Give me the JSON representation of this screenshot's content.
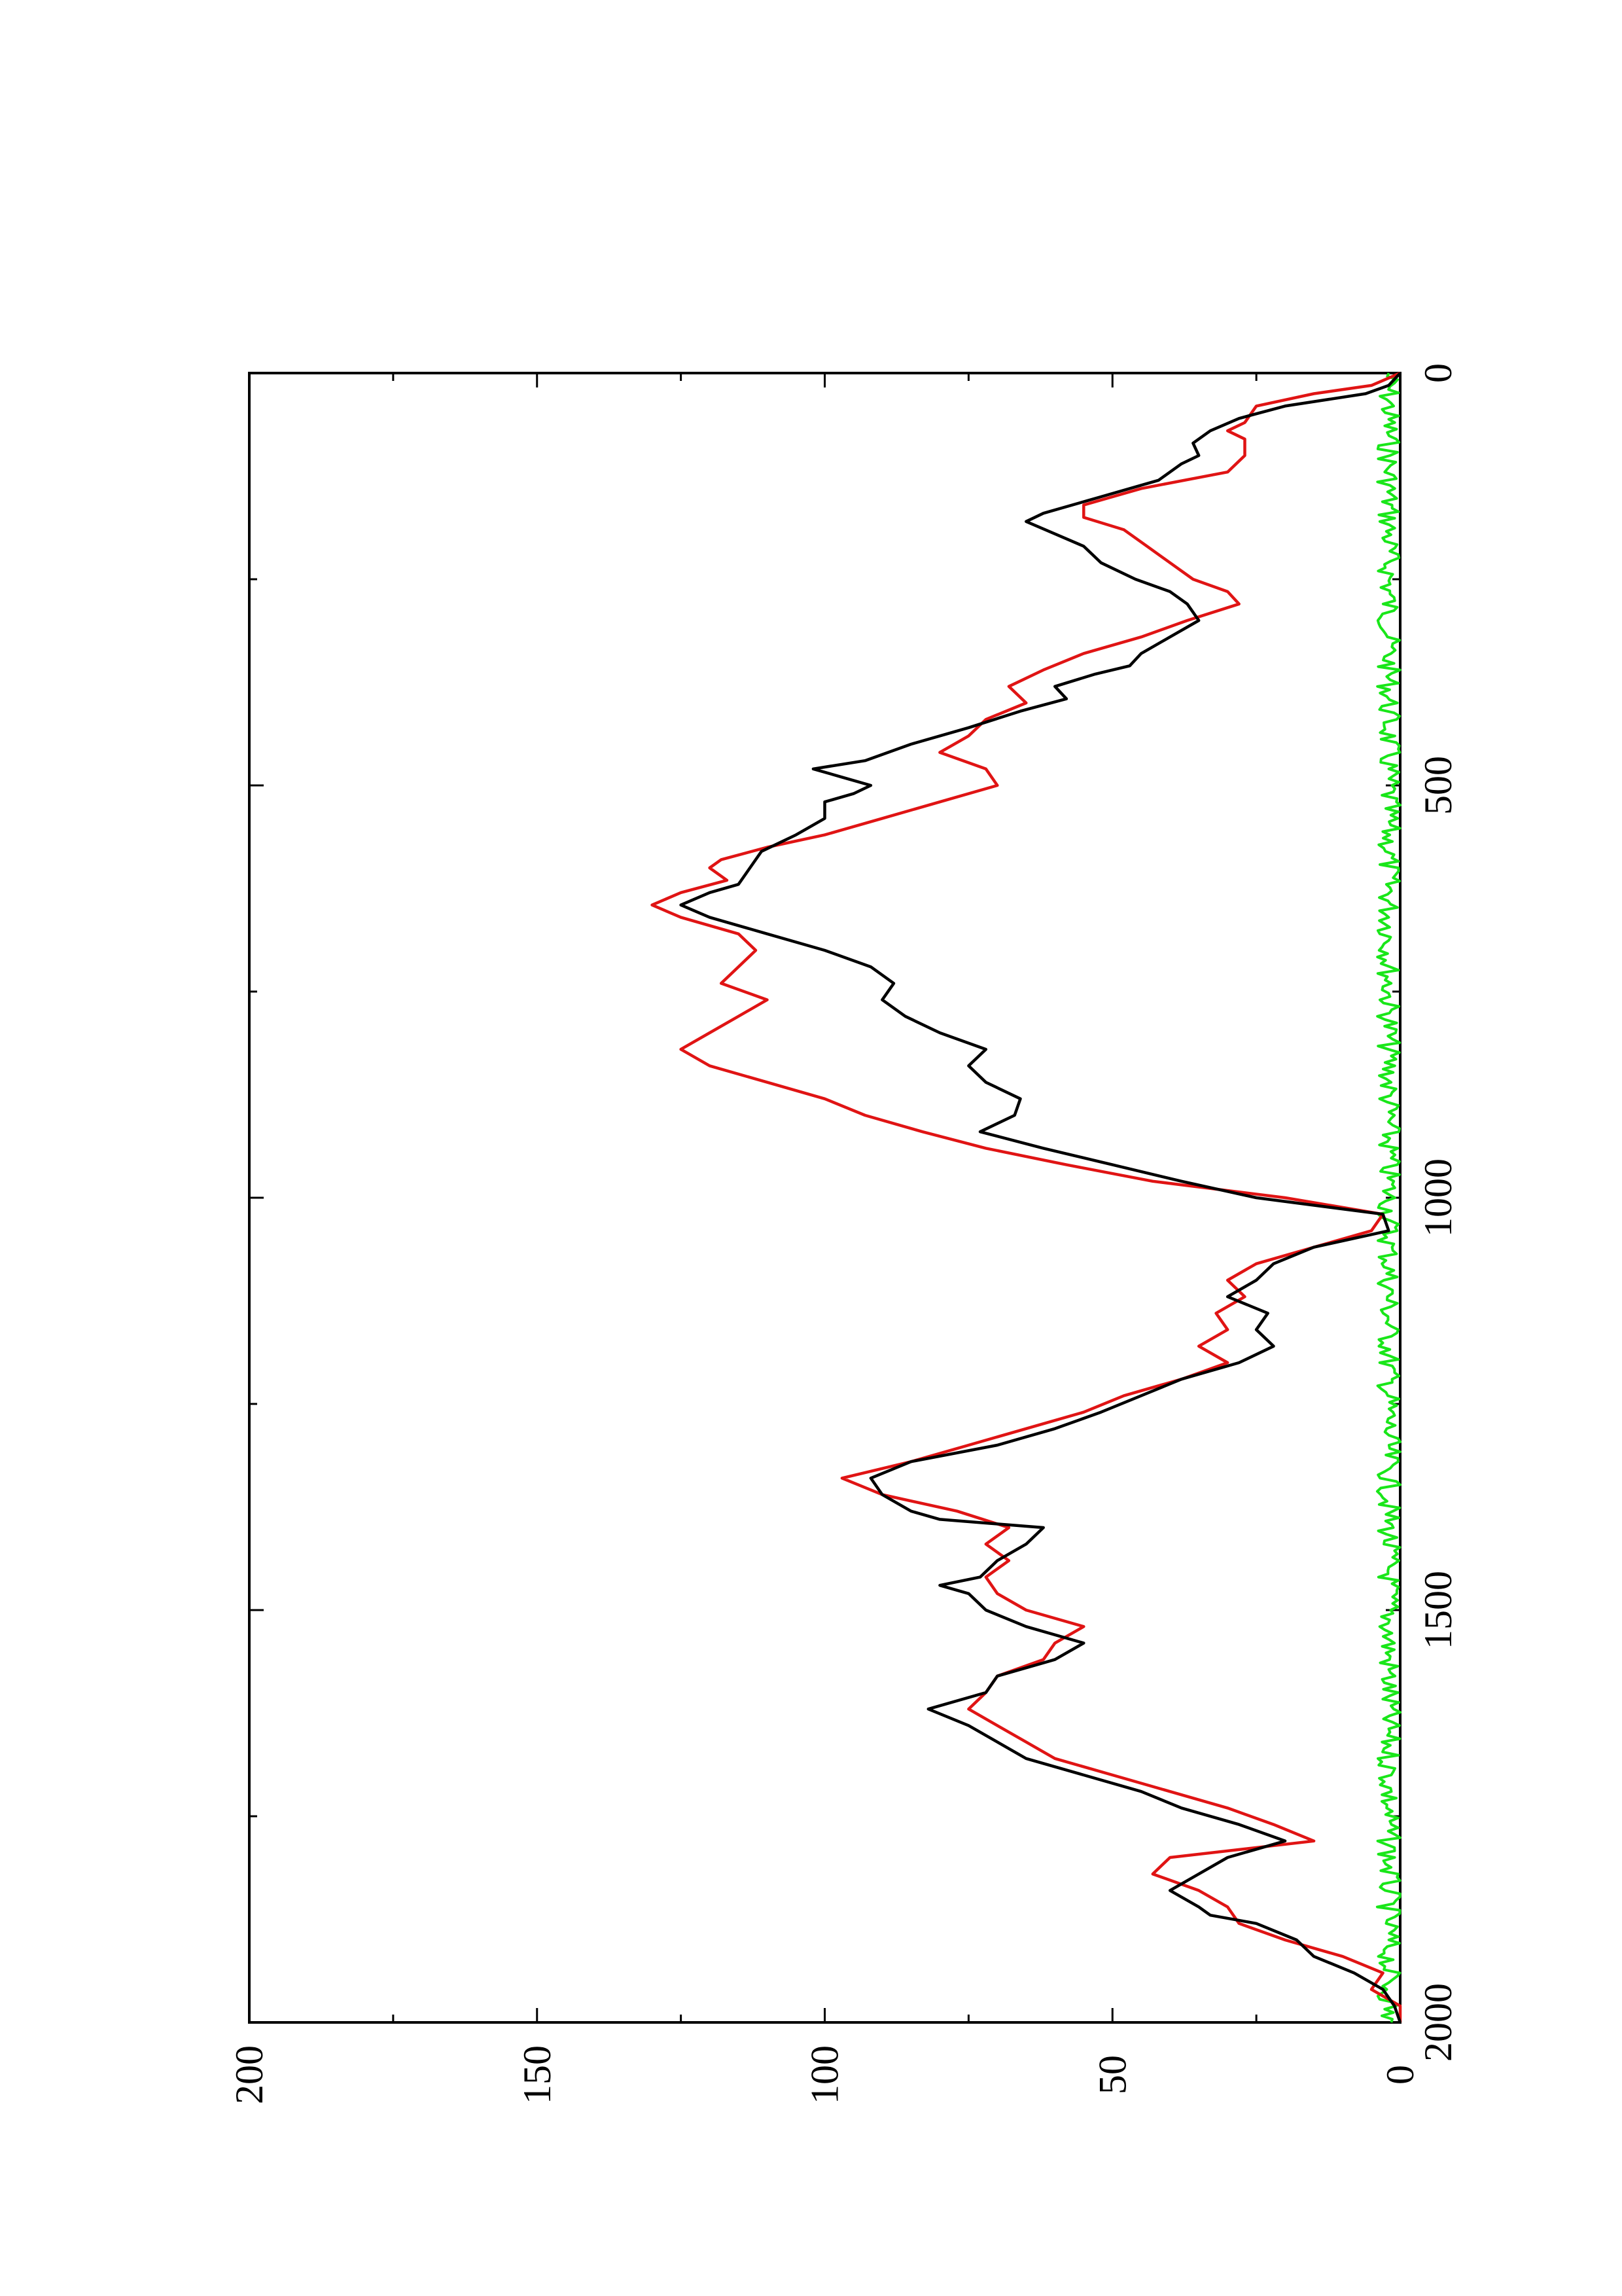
{
  "chart_data": {
    "type": "line",
    "orientation": "rotated-90-ccw",
    "title": "",
    "xlabel": "",
    "ylabel": "",
    "xlim": [
      0,
      2000
    ],
    "ylim": [
      0,
      200
    ],
    "x_ticks": [
      0,
      500,
      1000,
      1500,
      2000
    ],
    "y_ticks": [
      0,
      50,
      100,
      150,
      200
    ],
    "x_tick_labels": [
      "0",
      "500",
      "1000",
      "1500",
      "2000"
    ],
    "y_tick_labels": [
      "0",
      "50",
      "100",
      "150",
      "200"
    ],
    "x_minor_ticks": [
      250,
      750,
      1250,
      1750
    ],
    "y_minor_ticks": [
      25,
      75,
      125,
      175
    ],
    "grid": false,
    "legend": "none",
    "series": [
      {
        "color": "#000000",
        "points": [
          [
            0,
            0
          ],
          [
            15,
            2
          ],
          [
            25,
            6
          ],
          [
            40,
            20
          ],
          [
            55,
            28
          ],
          [
            70,
            33
          ],
          [
            85,
            36
          ],
          [
            100,
            35
          ],
          [
            110,
            38
          ],
          [
            130,
            42
          ],
          [
            150,
            52
          ],
          [
            170,
            62
          ],
          [
            180,
            65
          ],
          [
            195,
            60
          ],
          [
            210,
            55
          ],
          [
            230,
            52
          ],
          [
            250,
            46
          ],
          [
            265,
            40
          ],
          [
            280,
            37
          ],
          [
            300,
            35
          ],
          [
            320,
            40
          ],
          [
            340,
            45
          ],
          [
            355,
            47
          ],
          [
            365,
            53
          ],
          [
            380,
            60
          ],
          [
            395,
            58
          ],
          [
            410,
            66
          ],
          [
            430,
            75
          ],
          [
            450,
            85
          ],
          [
            470,
            93
          ],
          [
            480,
            102
          ],
          [
            490,
            97
          ],
          [
            500,
            92
          ],
          [
            510,
            95
          ],
          [
            520,
            100
          ],
          [
            540,
            100
          ],
          [
            560,
            105
          ],
          [
            580,
            111
          ],
          [
            600,
            113
          ],
          [
            620,
            115
          ],
          [
            630,
            120
          ],
          [
            645,
            125
          ],
          [
            660,
            120
          ],
          [
            680,
            110
          ],
          [
            700,
            100
          ],
          [
            720,
            92
          ],
          [
            740,
            88
          ],
          [
            760,
            90
          ],
          [
            780,
            86
          ],
          [
            800,
            80
          ],
          [
            820,
            72
          ],
          [
            840,
            75
          ],
          [
            860,
            72
          ],
          [
            880,
            66
          ],
          [
            900,
            67
          ],
          [
            920,
            73
          ],
          [
            940,
            62
          ],
          [
            960,
            50
          ],
          [
            980,
            38
          ],
          [
            1000,
            25
          ],
          [
            1020,
            3
          ],
          [
            1040,
            2
          ],
          [
            1060,
            15
          ],
          [
            1080,
            22
          ],
          [
            1100,
            25
          ],
          [
            1120,
            30
          ],
          [
            1140,
            23
          ],
          [
            1160,
            25
          ],
          [
            1180,
            22
          ],
          [
            1200,
            28
          ],
          [
            1220,
            38
          ],
          [
            1240,
            45
          ],
          [
            1260,
            52
          ],
          [
            1280,
            60
          ],
          [
            1300,
            70
          ],
          [
            1320,
            85
          ],
          [
            1340,
            92
          ],
          [
            1360,
            90
          ],
          [
            1380,
            85
          ],
          [
            1390,
            80
          ],
          [
            1400,
            62
          ],
          [
            1420,
            65
          ],
          [
            1440,
            70
          ],
          [
            1460,
            73
          ],
          [
            1470,
            80
          ],
          [
            1480,
            75
          ],
          [
            1500,
            72
          ],
          [
            1520,
            65
          ],
          [
            1540,
            55
          ],
          [
            1560,
            60
          ],
          [
            1580,
            70
          ],
          [
            1600,
            72
          ],
          [
            1620,
            82
          ],
          [
            1640,
            75
          ],
          [
            1660,
            70
          ],
          [
            1680,
            65
          ],
          [
            1700,
            55
          ],
          [
            1720,
            45
          ],
          [
            1740,
            38
          ],
          [
            1760,
            28
          ],
          [
            1780,
            20
          ],
          [
            1800,
            30
          ],
          [
            1820,
            35
          ],
          [
            1840,
            40
          ],
          [
            1860,
            35
          ],
          [
            1870,
            33
          ],
          [
            1880,
            25
          ],
          [
            1900,
            18
          ],
          [
            1920,
            15
          ],
          [
            1940,
            8
          ],
          [
            1960,
            3
          ],
          [
            1980,
            1
          ],
          [
            2000,
            0
          ]
        ]
      },
      {
        "color": "#e01414",
        "points": [
          [
            0,
            0
          ],
          [
            15,
            5
          ],
          [
            25,
            15
          ],
          [
            40,
            25
          ],
          [
            60,
            27
          ],
          [
            70,
            30
          ],
          [
            80,
            27
          ],
          [
            100,
            27
          ],
          [
            120,
            30
          ],
          [
            140,
            45
          ],
          [
            160,
            55
          ],
          [
            175,
            55
          ],
          [
            190,
            48
          ],
          [
            210,
            44
          ],
          [
            230,
            40
          ],
          [
            250,
            36
          ],
          [
            265,
            30
          ],
          [
            280,
            28
          ],
          [
            300,
            37
          ],
          [
            320,
            45
          ],
          [
            340,
            55
          ],
          [
            360,
            62
          ],
          [
            380,
            68
          ],
          [
            400,
            65
          ],
          [
            420,
            72
          ],
          [
            440,
            75
          ],
          [
            460,
            80
          ],
          [
            480,
            72
          ],
          [
            500,
            70
          ],
          [
            520,
            80
          ],
          [
            540,
            90
          ],
          [
            560,
            100
          ],
          [
            575,
            110
          ],
          [
            590,
            118
          ],
          [
            600,
            120
          ],
          [
            615,
            117
          ],
          [
            630,
            125
          ],
          [
            645,
            130
          ],
          [
            660,
            125
          ],
          [
            680,
            115
          ],
          [
            700,
            112
          ],
          [
            720,
            115
          ],
          [
            740,
            118
          ],
          [
            760,
            110
          ],
          [
            780,
            115
          ],
          [
            800,
            120
          ],
          [
            820,
            125
          ],
          [
            840,
            120
          ],
          [
            860,
            110
          ],
          [
            880,
            100
          ],
          [
            900,
            93
          ],
          [
            920,
            83
          ],
          [
            940,
            72
          ],
          [
            960,
            58
          ],
          [
            980,
            43
          ],
          [
            1000,
            20
          ],
          [
            1020,
            3
          ],
          [
            1040,
            5
          ],
          [
            1060,
            15
          ],
          [
            1080,
            25
          ],
          [
            1100,
            30
          ],
          [
            1120,
            27
          ],
          [
            1140,
            32
          ],
          [
            1160,
            30
          ],
          [
            1180,
            35
          ],
          [
            1200,
            30
          ],
          [
            1220,
            38
          ],
          [
            1240,
            48
          ],
          [
            1260,
            55
          ],
          [
            1280,
            65
          ],
          [
            1300,
            75
          ],
          [
            1320,
            85
          ],
          [
            1340,
            97
          ],
          [
            1360,
            90
          ],
          [
            1380,
            77
          ],
          [
            1400,
            68
          ],
          [
            1420,
            72
          ],
          [
            1440,
            68
          ],
          [
            1460,
            72
          ],
          [
            1480,
            70
          ],
          [
            1500,
            65
          ],
          [
            1520,
            55
          ],
          [
            1540,
            60
          ],
          [
            1560,
            62
          ],
          [
            1580,
            70
          ],
          [
            1600,
            72
          ],
          [
            1620,
            75
          ],
          [
            1640,
            70
          ],
          [
            1660,
            65
          ],
          [
            1680,
            60
          ],
          [
            1700,
            50
          ],
          [
            1720,
            40
          ],
          [
            1740,
            30
          ],
          [
            1760,
            22
          ],
          [
            1780,
            15
          ],
          [
            1800,
            40
          ],
          [
            1820,
            43
          ],
          [
            1840,
            35
          ],
          [
            1860,
            30
          ],
          [
            1880,
            28
          ],
          [
            1900,
            20
          ],
          [
            1920,
            10
          ],
          [
            1940,
            3
          ],
          [
            1960,
            5
          ],
          [
            1980,
            0
          ],
          [
            2000,
            0
          ]
        ]
      },
      {
        "color": "#19e619",
        "noise_band": [
          0,
          4
        ],
        "points": [
          [
            0,
            0.5
          ],
          [
            50,
            1.4
          ],
          [
            100,
            0.7
          ],
          [
            150,
            1.8
          ],
          [
            200,
            0.9
          ],
          [
            250,
            1.5
          ],
          [
            300,
            0.6
          ],
          [
            350,
            1.9
          ],
          [
            400,
            0.8
          ],
          [
            450,
            1.5
          ],
          [
            500,
            0.7
          ],
          [
            550,
            1.8
          ],
          [
            600,
            1.1
          ],
          [
            650,
            0.5
          ],
          [
            700,
            1.7
          ],
          [
            750,
            0.8
          ],
          [
            800,
            1.4
          ],
          [
            850,
            0.9
          ],
          [
            900,
            1.6
          ],
          [
            950,
            0.7
          ],
          [
            1000,
            1.2
          ],
          [
            1050,
            0.9
          ],
          [
            1100,
            1.9
          ],
          [
            1150,
            0.6
          ],
          [
            1200,
            1.5
          ],
          [
            1250,
            0.8
          ],
          [
            1300,
            1.2
          ],
          [
            1350,
            0.6
          ],
          [
            1400,
            1.7
          ],
          [
            1450,
            0.9
          ],
          [
            1500,
            1.4
          ],
          [
            1550,
            0.7
          ],
          [
            1600,
            1.6
          ],
          [
            1650,
            0.9
          ],
          [
            1700,
            1.3
          ],
          [
            1750,
            0.6
          ],
          [
            1800,
            1.5
          ],
          [
            1850,
            0.8
          ],
          [
            1900,
            1.4
          ],
          [
            1950,
            0.7
          ],
          [
            2000,
            0.5
          ]
        ]
      }
    ]
  }
}
